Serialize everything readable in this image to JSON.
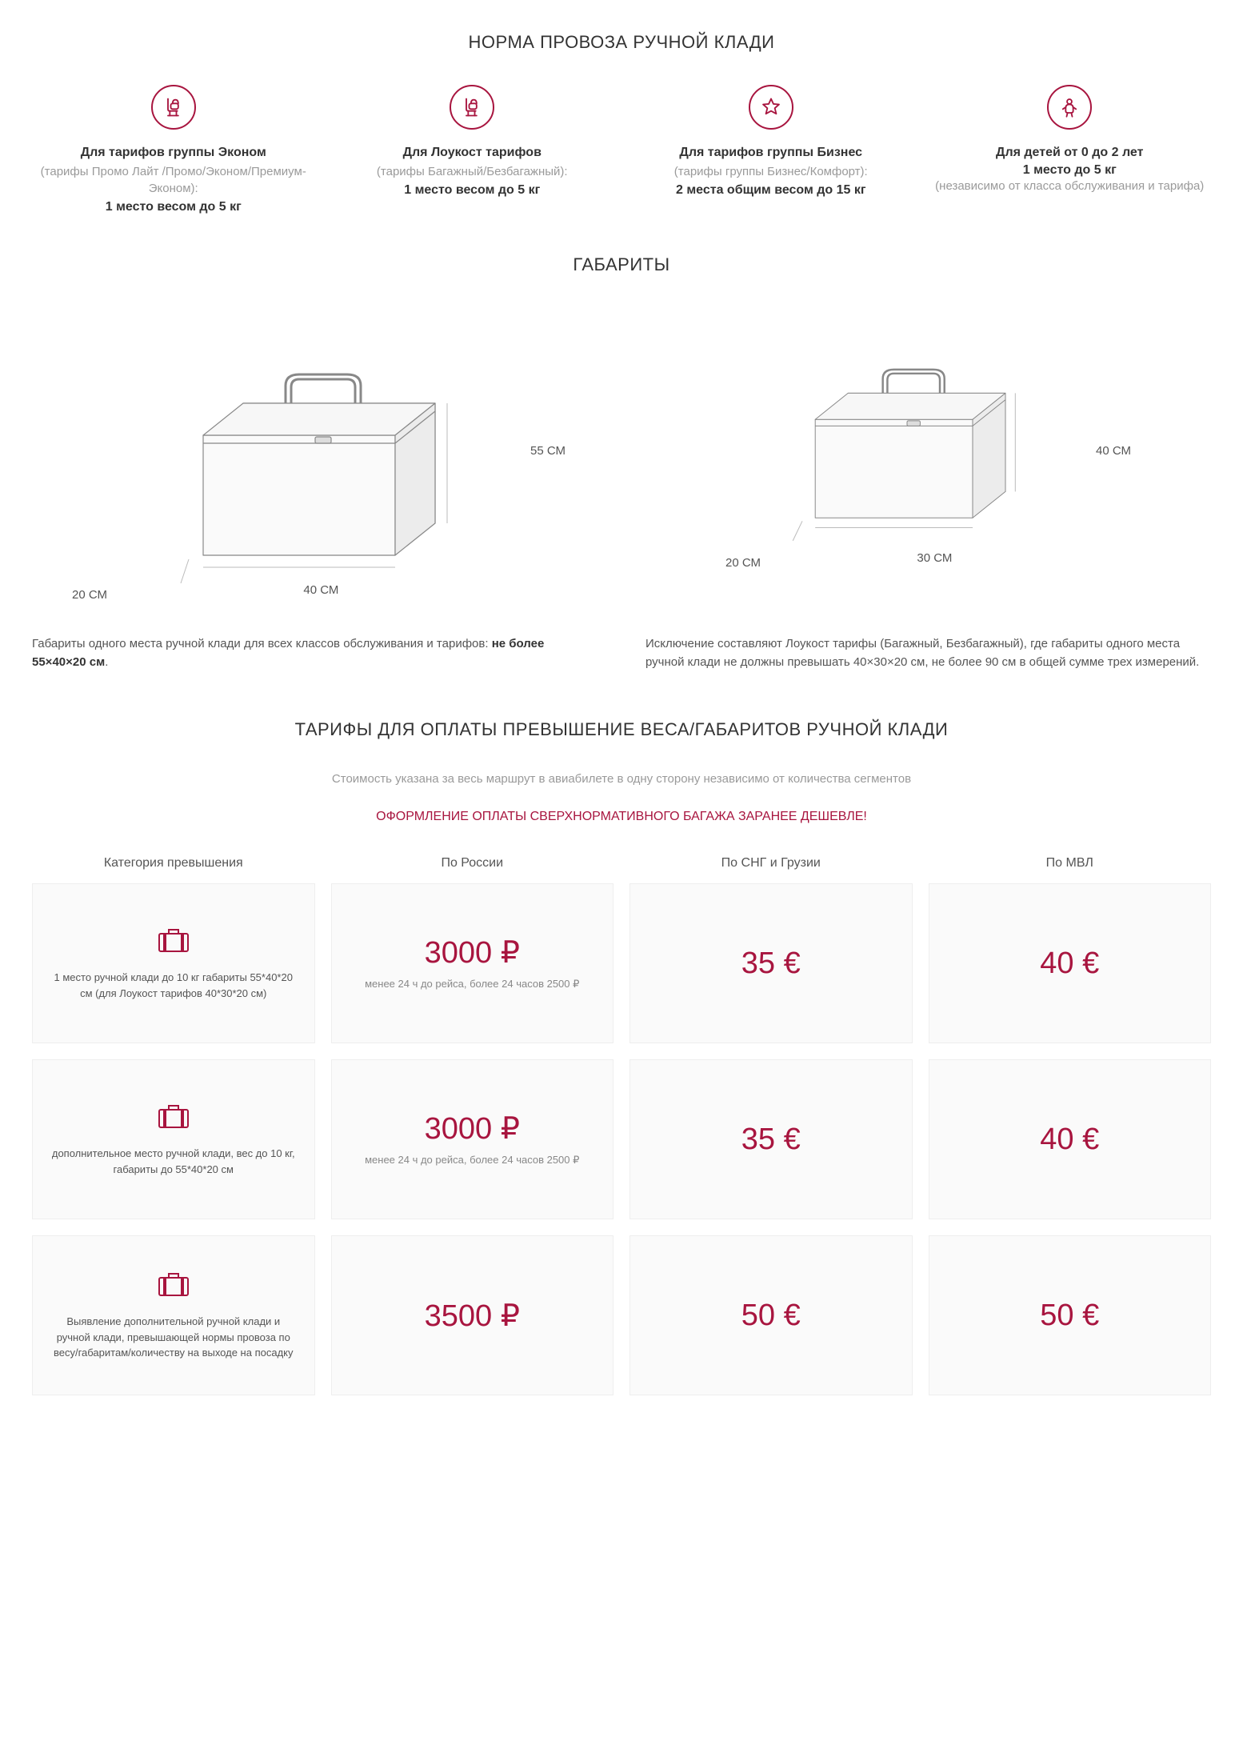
{
  "colors": {
    "accent": "#a8153f",
    "text": "#3a3a3a",
    "muted": "#9a9a9a",
    "cell_bg": "#fafafa",
    "cell_border": "#eeeeee"
  },
  "section1_title": "НОРМА ПРОВОЗА РУЧНОЙ КЛАДИ",
  "tariffs": [
    {
      "icon": "seat",
      "title": "Для тарифов группы Эконом",
      "sub": "(тарифы Промо Лайт /Промо/Эконом/Премиум-Эконом):",
      "bold": "1 место весом до 5 кг"
    },
    {
      "icon": "seat",
      "title": "Для Лоукост тарифов",
      "sub": "(тарифы Багажный/Безбагажный):",
      "bold": "1 место весом до 5 кг"
    },
    {
      "icon": "star",
      "title": "Для тарифов группы Бизнес",
      "sub": "(тарифы группы Бизнес/Комфорт):",
      "bold": "2 места общим весом до 15 кг"
    },
    {
      "icon": "child",
      "title": "Для детей от 0 до 2 лет",
      "bold_first": "1 место до 5 кг",
      "sub": "(независимо от класса обслуживания и тарифа)"
    }
  ],
  "section2_title": "ГАБАРИТЫ",
  "suitcases": [
    {
      "height": "55 СМ",
      "width": "40 СМ",
      "depth": "20 СМ",
      "scale": 1.0
    },
    {
      "height": "40 СМ",
      "width": "30 СМ",
      "depth": "20 СМ",
      "scale": 0.82
    }
  ],
  "dims_text": [
    "Габариты одного места ручной клади для всех классов обслуживания и тарифов: <b>не более 55×40×20 см</b>.",
    "Исключение составляют Лоукост тарифы (Багажный, Безбагажный), где габариты одного места ручной клади не должны превышать 40×30×20 см, не более 90 см в общей сумме трех измерений."
  ],
  "section3_title": "ТАРИФЫ ДЛЯ ОПЛАТЫ ПРЕВЫШЕНИЕ ВЕСА/ГАБАРИТОВ РУЧНОЙ КЛАДИ",
  "section3_sub": "Стоимость указана за весь маршрут в авиабилете в одну сторону независимо от количества сегментов",
  "section3_notice": "ОФОРМЛЕНИЕ ОПЛАТЫ СВЕРХНОРМАТИВНОГО БАГАЖА ЗАРАНЕЕ ДЕШЕВЛЕ!",
  "price_headers": [
    "Категория превышения",
    "По России",
    "По СНГ и Грузии",
    "По МВЛ"
  ],
  "price_rows": [
    {
      "cat": "1 место ручной клади до 10 кг габариты 55*40*20 см (для Лоукост тарифов 40*30*20 см)",
      "cells": [
        {
          "big": "3000 ₽",
          "note": "менее 24 ч до рейса, более 24 часов 2500 ₽"
        },
        {
          "big": "35 €"
        },
        {
          "big": "40 €"
        }
      ]
    },
    {
      "cat": "дополнительное место ручной клади, вес до 10 кг, габариты до 55*40*20 см",
      "cells": [
        {
          "big": "3000 ₽",
          "note": "менее 24 ч до рейса, более 24 часов 2500 ₽"
        },
        {
          "big": "35 €"
        },
        {
          "big": "40 €"
        }
      ]
    },
    {
      "cat": "Выявление дополнительной ручной клади и ручной клади, превышающей нормы провоза по весу/габаритам/количеству на выходе на посадку",
      "cells": [
        {
          "big": "3500 ₽"
        },
        {
          "big": "50 €"
        },
        {
          "big": "50 €"
        }
      ]
    }
  ]
}
